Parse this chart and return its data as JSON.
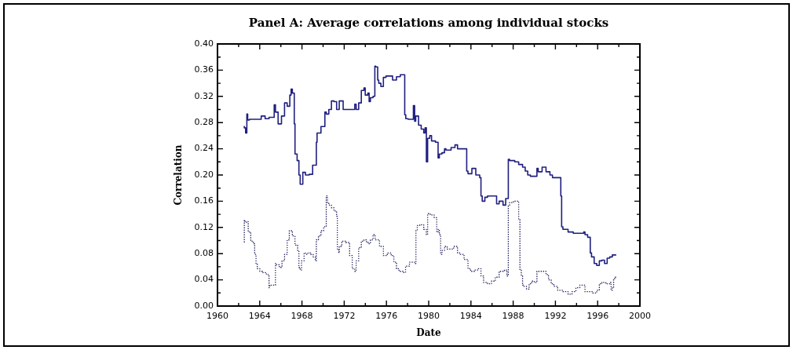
{
  "chart_data": {
    "type": "step",
    "title": "Panel A: Average correlations among individual stocks",
    "xlabel": "Date",
    "ylabel": "Correlation",
    "xlim": [
      1960,
      2000
    ],
    "xticks": [
      1960,
      1964,
      1968,
      1972,
      1976,
      1980,
      1984,
      1988,
      1992,
      1996,
      2000
    ],
    "ylim": [
      0,
      0.4
    ],
    "yticks": [
      {
        "value": 0,
        "label": "0.00"
      },
      0.04,
      0.08,
      0.12,
      0.16,
      {
        "value": 0.2,
        "label": "0.20"
      },
      0.24,
      0.28,
      0.32,
      0.36,
      {
        "value": 0.4,
        "label": "0.40"
      }
    ],
    "grid": false,
    "legend": false,
    "marker": "none",
    "series": [
      {
        "color": "#1f1f80",
        "line_style": "solid",
        "x": [
          1962.54,
          1962.66,
          1962.78,
          1962.86,
          1963.03,
          1964.14,
          1964.51,
          1964.88,
          1965.37,
          1965.49,
          1965.74,
          1966.06,
          1966.35,
          1966.6,
          1966.85,
          1966.97,
          1967.09,
          1967.27,
          1967.34,
          1967.54,
          1967.71,
          1967.83,
          1968.08,
          1968.33,
          1968.69,
          1969.01,
          1969.11,
          1969.36,
          1969.43,
          1969.8,
          1970.17,
          1970.3,
          1970.54,
          1970.79,
          1971.03,
          1971.28,
          1971.53,
          1971.9,
          1972.02,
          1973.0,
          1973.13,
          1973.37,
          1973.62,
          1973.87,
          1973.99,
          1974.24,
          1974.36,
          1974.48,
          1974.73,
          1974.9,
          1974.98,
          1975.17,
          1975.27,
          1975.47,
          1975.71,
          1975.96,
          1976.58,
          1976.95,
          1977.31,
          1977.73,
          1977.83,
          1978.05,
          1978.55,
          1978.67,
          1978.77,
          1979.04,
          1979.29,
          1979.53,
          1979.66,
          1979.78,
          1979.9,
          1980.1,
          1980.27,
          1980.64,
          1980.89,
          1981.01,
          1981.26,
          1981.5,
          1981.63,
          1982.12,
          1982.49,
          1982.73,
          1983.1,
          1983.6,
          1983.72,
          1984.09,
          1984.46,
          1984.83,
          1984.95,
          1985.07,
          1985.32,
          1985.57,
          1986.43,
          1986.67,
          1987.04,
          1987.29,
          1987.54,
          1987.66,
          1988.15,
          1988.52,
          1988.89,
          1989.14,
          1989.38,
          1989.63,
          1990.25,
          1990.37,
          1990.74,
          1991.11,
          1991.48,
          1991.72,
          1991.97,
          1992.51,
          1992.59,
          1992.71,
          1993.2,
          1993.69,
          1994.68,
          1994.8,
          1995.05,
          1995.3,
          1995.42,
          1995.67,
          1995.91,
          1996.16,
          1996.4,
          1996.65,
          1996.9,
          1997.14,
          1997.39,
          1997.76
        ],
        "values": [
          0.275,
          0.272,
          0.264,
          0.293,
          0.284,
          0.285,
          0.29,
          0.286,
          0.288,
          0.307,
          0.296,
          0.278,
          0.29,
          0.31,
          0.305,
          0.322,
          0.331,
          0.325,
          0.278,
          0.232,
          0.222,
          0.2,
          0.186,
          0.204,
          0.2,
          0.201,
          0.215,
          0.215,
          0.25,
          0.264,
          0.274,
          0.296,
          0.293,
          0.3,
          0.313,
          0.312,
          0.3,
          0.313,
          0.3,
          0.3,
          0.308,
          0.3,
          0.31,
          0.329,
          0.333,
          0.322,
          0.325,
          0.312,
          0.318,
          0.32,
          0.366,
          0.365,
          0.345,
          0.34,
          0.335,
          0.349,
          0.351,
          0.345,
          0.35,
          0.353,
          0.292,
          0.286,
          0.285,
          0.306,
          0.282,
          0.29,
          0.276,
          0.27,
          0.264,
          0.272,
          0.22,
          0.256,
          0.26,
          0.252,
          0.25,
          0.226,
          0.232,
          0.234,
          0.24,
          0.238,
          0.242,
          0.246,
          0.24,
          0.24,
          0.206,
          0.202,
          0.21,
          0.2,
          0.196,
          0.168,
          0.16,
          0.166,
          0.168,
          0.156,
          0.16,
          0.154,
          0.164,
          0.224,
          0.222,
          0.22,
          0.216,
          0.212,
          0.206,
          0.2,
          0.198,
          0.21,
          0.205,
          0.212,
          0.205,
          0.2,
          0.196,
          0.196,
          0.168,
          0.121,
          0.117,
          0.113,
          0.111,
          0.113,
          0.109,
          0.105,
          0.081,
          0.075,
          0.065,
          0.062,
          0.069,
          0.07,
          0.065,
          0.073,
          0.075,
          0.078
        ]
      },
      {
        "color": "#22225e",
        "line_style": "dotted",
        "x": [
          1962.54,
          1962.61,
          1962.78,
          1962.91,
          1963.15,
          1963.4,
          1963.52,
          1963.65,
          1963.77,
          1964.01,
          1964.26,
          1964.63,
          1964.88,
          1964.95,
          1965.25,
          1965.49,
          1965.57,
          1965.86,
          1966.11,
          1966.35,
          1966.6,
          1966.8,
          1967.09,
          1967.34,
          1967.59,
          1967.71,
          1967.83,
          1967.96,
          1968.2,
          1968.33,
          1968.57,
          1968.82,
          1969.06,
          1969.26,
          1969.36,
          1969.56,
          1969.8,
          1970.05,
          1970.3,
          1970.42,
          1970.54,
          1970.79,
          1971.03,
          1971.28,
          1971.35,
          1971.48,
          1971.53,
          1971.77,
          1972.14,
          1972.51,
          1972.76,
          1973.0,
          1973.13,
          1973.37,
          1973.62,
          1973.87,
          1974.11,
          1974.36,
          1974.48,
          1974.73,
          1974.93,
          1975.1,
          1975.34,
          1975.71,
          1976.08,
          1976.45,
          1976.7,
          1976.95,
          1977.19,
          1977.56,
          1977.81,
          1978.18,
          1978.67,
          1978.79,
          1978.92,
          1979.16,
          1979.53,
          1979.78,
          1979.9,
          1980.15,
          1980.52,
          1980.76,
          1980.89,
          1981.01,
          1981.13,
          1981.26,
          1981.5,
          1981.75,
          1981.99,
          1982.36,
          1982.73,
          1982.98,
          1983.35,
          1983.72,
          1983.97,
          1984.33,
          1984.7,
          1984.95,
          1985.2,
          1985.57,
          1985.94,
          1986.31,
          1986.67,
          1987.17,
          1987.41,
          1987.54,
          1987.66,
          1988.03,
          1988.52,
          1988.64,
          1988.77,
          1988.89,
          1989.01,
          1989.26,
          1989.51,
          1989.75,
          1990.0,
          1990.25,
          1990.49,
          1990.74,
          1991.11,
          1991.35,
          1991.6,
          1991.85,
          1992.22,
          1992.71,
          1993.2,
          1993.57,
          1993.94,
          1994.31,
          1994.8,
          1995.17,
          1995.54,
          1995.91,
          1996.16,
          1996.4,
          1996.77,
          1997.14,
          1997.27,
          1997.39,
          1997.51,
          1997.64,
          1997.76
        ],
        "values": [
          0.097,
          0.131,
          0.128,
          0.129,
          0.113,
          0.099,
          0.095,
          0.079,
          0.065,
          0.057,
          0.053,
          0.051,
          0.048,
          0.028,
          0.032,
          0.032,
          0.065,
          0.063,
          0.059,
          0.069,
          0.079,
          0.101,
          0.115,
          0.107,
          0.093,
          0.085,
          0.059,
          0.055,
          0.069,
          0.081,
          0.079,
          0.081,
          0.079,
          0.075,
          0.069,
          0.101,
          0.107,
          0.115,
          0.121,
          0.168,
          0.158,
          0.154,
          0.15,
          0.145,
          0.137,
          0.087,
          0.081,
          0.091,
          0.099,
          0.097,
          0.077,
          0.057,
          0.053,
          0.069,
          0.089,
          0.099,
          0.101,
          0.097,
          0.095,
          0.101,
          0.109,
          0.101,
          0.101,
          0.091,
          0.077,
          0.081,
          0.077,
          0.067,
          0.057,
          0.053,
          0.051,
          0.061,
          0.067,
          0.065,
          0.115,
          0.123,
          0.124,
          0.117,
          0.109,
          0.141,
          0.139,
          0.135,
          0.113,
          0.117,
          0.109,
          0.079,
          0.085,
          0.091,
          0.087,
          0.087,
          0.091,
          0.081,
          0.079,
          0.071,
          0.057,
          0.053,
          0.055,
          0.057,
          0.046,
          0.036,
          0.034,
          0.038,
          0.044,
          0.053,
          0.055,
          0.046,
          0.154,
          0.158,
          0.16,
          0.133,
          0.055,
          0.046,
          0.032,
          0.03,
          0.026,
          0.034,
          0.038,
          0.036,
          0.053,
          0.053,
          0.053,
          0.048,
          0.04,
          0.034,
          0.03,
          0.024,
          0.022,
          0.018,
          0.022,
          0.028,
          0.032,
          0.022,
          0.022,
          0.02,
          0.024,
          0.034,
          0.036,
          0.034,
          0.036,
          0.024,
          0.028,
          0.042,
          0.044
        ]
      }
    ]
  }
}
